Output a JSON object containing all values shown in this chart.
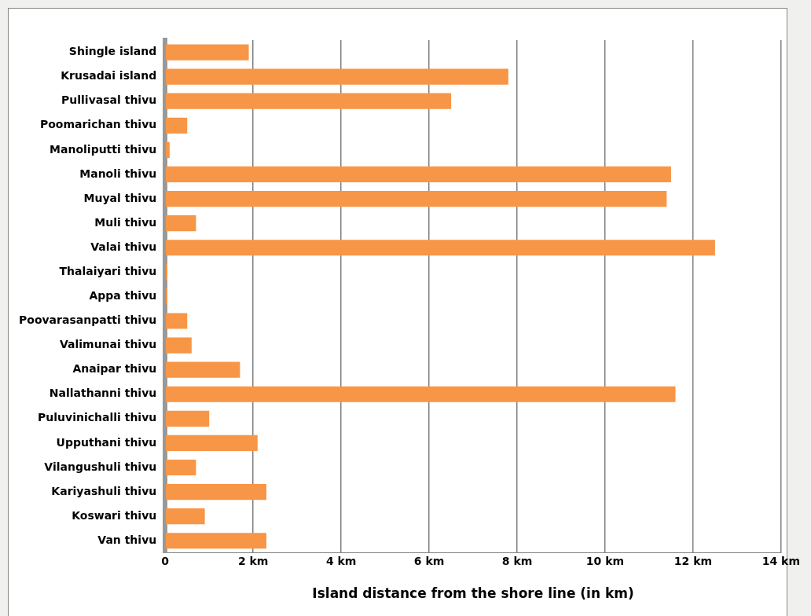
{
  "chart_data": {
    "type": "bar",
    "orientation": "horizontal",
    "xlabel": "Island distance from the shore line (in km)",
    "categories": [
      "Shingle island",
      "Krusadai island",
      "Pullivasal thivu",
      "Poomarichan thivu",
      "Manoliputti thivu",
      "Manoli thivu",
      "Muyal thivu",
      "Muli thivu",
      "Valai thivu",
      "Thalaiyari thivu",
      "Appa thivu",
      "Poovarasanpatti thivu",
      "Valimunai thivu",
      "Anaipar thivu",
      "Nallathanni thivu",
      "Puluvinichalli thivu",
      "Upputhani thivu",
      "Vilangushuli thivu",
      "Kariyashuli thivu",
      "Koswari thivu",
      "Van thivu"
    ],
    "values": [
      1.9,
      7.8,
      6.5,
      0.5,
      0.1,
      11.5,
      11.4,
      0.7,
      12.5,
      0.05,
      0.05,
      0.5,
      0.6,
      1.7,
      11.6,
      1,
      2.1,
      0.7,
      2.3,
      0.9,
      2.3
    ],
    "color": "#f79646",
    "xlim": [
      0,
      14
    ],
    "xticks": [
      0,
      {
        "value": 2,
        "label": "2 km"
      },
      {
        "value": 4,
        "label": "4 km"
      },
      {
        "value": 6,
        "label": "6 km"
      },
      {
        "value": 8,
        "label": "8 km"
      },
      {
        "value": 10,
        "label": "10 km"
      },
      {
        "value": 12,
        "label": "12 km"
      },
      {
        "value": 14,
        "label": "14 km"
      }
    ],
    "grid": "x"
  }
}
